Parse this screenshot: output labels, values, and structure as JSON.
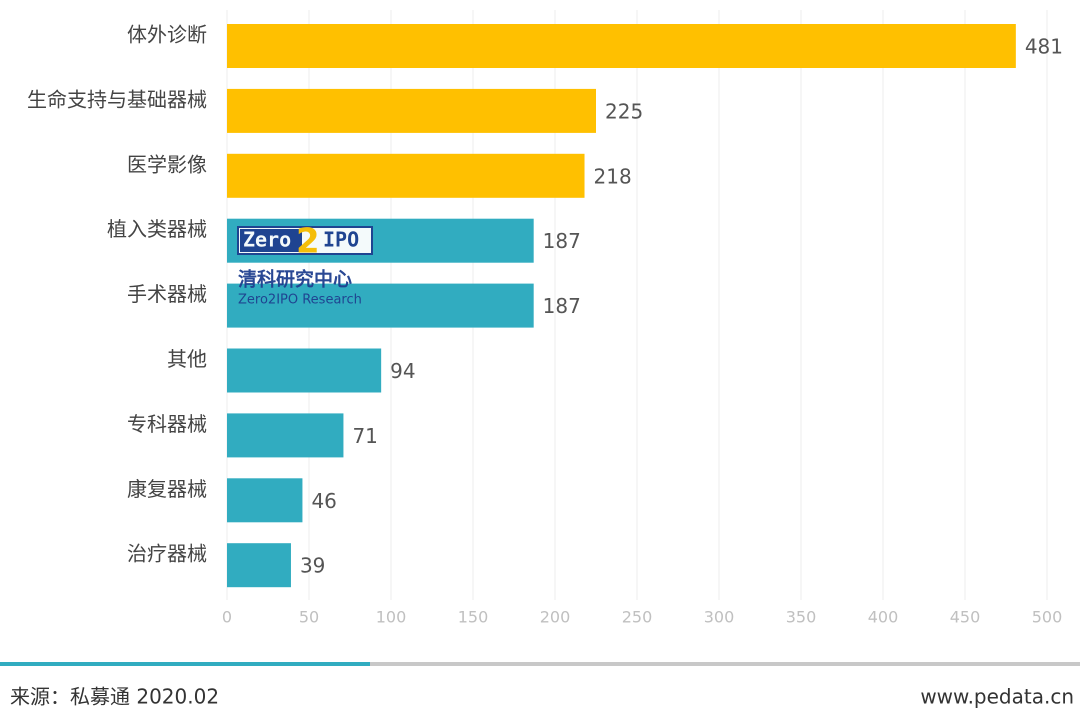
{
  "chart_data": {
    "type": "hbar",
    "categories": [
      "体外诊断",
      "生命支持与基础器械",
      "医学影像",
      "植入类器械",
      "手术器械",
      "其他",
      "专科器械",
      "康复器械",
      "治疗器械"
    ],
    "values": [
      481,
      225,
      218,
      187,
      187,
      94,
      71,
      46,
      39
    ],
    "colors": [
      "#FFC000",
      "#FFC000",
      "#FFC000",
      "#31ACC0",
      "#31ACC0",
      "#31ACC0",
      "#31ACC0",
      "#31ACC0",
      "#31ACC0"
    ],
    "xlim": [
      0,
      500
    ],
    "xticks": [
      0,
      50,
      100,
      150,
      200,
      250,
      300,
      350,
      400,
      450,
      500
    ],
    "grid": true,
    "watermark": {
      "logo_left": "Zero",
      "logo_mid": "2",
      "logo_right": "IPO",
      "name": "清科研究中心",
      "name_en": "Zero2IPO Research"
    },
    "source": "来源：私募通 2020.02",
    "website": "www.pedata.cn"
  }
}
